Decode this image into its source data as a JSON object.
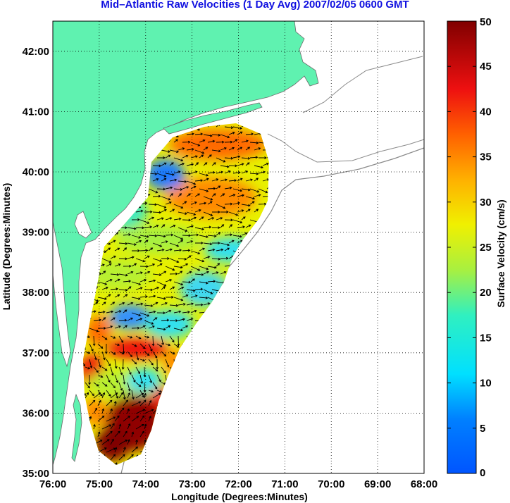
{
  "title": "Mid–Atlantic Raw Velocities (1 Day Avg) 2007/02/05 0600 GMT",
  "colors": {
    "title": "#1010e0",
    "land": "#5ff2b0",
    "coast_outline": "#8a8a8a",
    "arrows": "#000000"
  },
  "map": {
    "xlabel": "Longitude (Degrees:Minutes)",
    "ylabel": "Latitude (Degrees:Minutes)",
    "lon_range": [
      -76,
      -68
    ],
    "lat_range": [
      35,
      42.5
    ],
    "lon_ticks": [
      {
        "value": -76,
        "label": "76:00"
      },
      {
        "value": -75,
        "label": "75:00"
      },
      {
        "value": -74,
        "label": "74:00"
      },
      {
        "value": -73,
        "label": "73:00"
      },
      {
        "value": -72,
        "label": "72:00"
      },
      {
        "value": -71,
        "label": "71:00"
      },
      {
        "value": -70,
        "label": "70:00"
      },
      {
        "value": -69,
        "label": "69:00"
      },
      {
        "value": -68,
        "label": "68:00"
      }
    ],
    "lat_ticks": [
      {
        "value": 35,
        "label": "35:00"
      },
      {
        "value": 36,
        "label": "36:00"
      },
      {
        "value": 37,
        "label": "37:00"
      },
      {
        "value": 38,
        "label": "38:00"
      },
      {
        "value": 39,
        "label": "39:00"
      },
      {
        "value": 40,
        "label": "40:00"
      },
      {
        "value": 41,
        "label": "41:00"
      },
      {
        "value": 42,
        "label": "42:00"
      }
    ],
    "grid": "dotted"
  },
  "colorbar": {
    "label": "Surface Velocity (cm/s)",
    "range": [
      0,
      50
    ],
    "ticks": [
      {
        "value": 0,
        "label": "0"
      },
      {
        "value": 5,
        "label": "5"
      },
      {
        "value": 10,
        "label": "10"
      },
      {
        "value": 15,
        "label": "15"
      },
      {
        "value": 20,
        "label": "20"
      },
      {
        "value": 25,
        "label": "25"
      },
      {
        "value": 30,
        "label": "30"
      },
      {
        "value": 35,
        "label": "35"
      },
      {
        "value": 40,
        "label": "40"
      },
      {
        "value": 45,
        "label": "45"
      },
      {
        "value": 50,
        "label": "50"
      }
    ],
    "colormap": "jet"
  }
}
